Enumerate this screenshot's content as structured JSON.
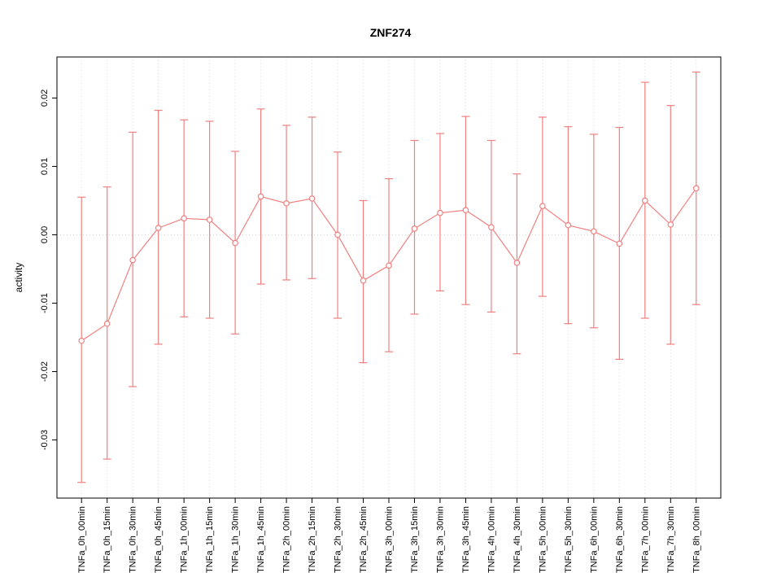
{
  "chart_data": {
    "type": "line",
    "title": "ZNF274",
    "xlabel": "",
    "ylabel": "activity",
    "legend": "none",
    "grid": "dotted vertical line at each category, dotted horizontal line at y=0",
    "ylim": [
      -0.0385,
      0.026
    ],
    "yticks": [
      -0.03,
      -0.02,
      -0.01,
      0,
      0.01,
      0.02
    ],
    "series_color": "#f08080",
    "grid_color": "#d9d9d9",
    "axis_color": "#000000",
    "marker": "open-circle",
    "error_bars": true,
    "categories": [
      "TNFa_0h_00min",
      "TNFa_0h_15min",
      "TNFa_0h_30min",
      "TNFa_0h_45min",
      "TNFa_1h_00min",
      "TNFa_1h_15min",
      "TNFa_1h_30min",
      "TNFa_1h_45min",
      "TNFa_2h_00min",
      "TNFa_2h_15min",
      "TNFa_2h_30min",
      "TNFa_2h_45min",
      "TNFa_3h_00min",
      "TNFa_3h_15min",
      "TNFa_3h_30min",
      "TNFa_3h_45min",
      "TNFa_4h_00min",
      "TNFa_4h_30min",
      "TNFa_5h_00min",
      "TNFa_5h_30min",
      "TNFa_6h_00min",
      "TNFa_6h_30min",
      "TNFa_7h_00min",
      "TNFa_7h_30min",
      "TNFa_8h_00min"
    ],
    "series": [
      {
        "name": "activity",
        "values": [
          -0.0155,
          -0.013,
          -0.0037,
          0.001,
          0.0024,
          0.0022,
          -0.0012,
          0.0056,
          0.0046,
          0.0053,
          0.0,
          -0.0067,
          -0.0045,
          0.0009,
          0.0032,
          0.0036,
          0.0011,
          -0.0041,
          0.0042,
          0.0014,
          0.0005,
          -0.0013,
          0.005,
          0.0015,
          0.0068
        ],
        "upper": [
          0.0055,
          0.007,
          0.015,
          0.0182,
          0.0168,
          0.0166,
          0.0122,
          0.0184,
          0.016,
          0.0172,
          0.0121,
          0.005,
          0.0082,
          0.0138,
          0.0148,
          0.0173,
          0.0138,
          0.0089,
          0.0172,
          0.0158,
          0.0147,
          0.0157,
          0.0223,
          0.0189,
          0.0238
        ],
        "lower": [
          -0.0362,
          -0.0328,
          -0.0222,
          -0.016,
          -0.012,
          -0.0122,
          -0.0145,
          -0.0072,
          -0.0066,
          -0.0064,
          -0.0122,
          -0.0187,
          -0.0171,
          -0.0116,
          -0.0082,
          -0.0102,
          -0.0113,
          -0.0174,
          -0.009,
          -0.013,
          -0.0136,
          -0.0182,
          -0.0122,
          -0.016,
          -0.0102
        ]
      }
    ]
  }
}
